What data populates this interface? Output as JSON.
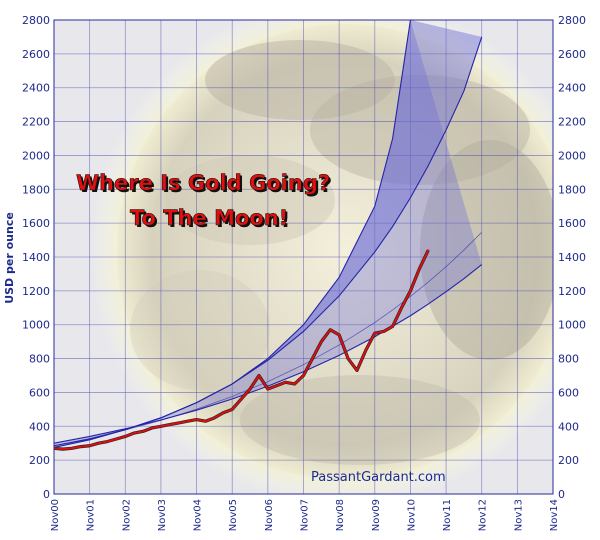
{
  "chart_data": {
    "type": "line",
    "title": "Where Is Gold Going?",
    "subtitle": "To The Moon!",
    "ylabel": "USD per ounce",
    "xlabel": "",
    "credit": "PassantGardant.com",
    "ylim": [
      0,
      2800
    ],
    "yticks": [
      0,
      200,
      400,
      600,
      800,
      1000,
      1200,
      1400,
      1600,
      1800,
      2000,
      2200,
      2400,
      2600,
      2800
    ],
    "xticks": [
      "Nov00",
      "Nov01",
      "Nov02",
      "Nov03",
      "Nov04",
      "Nov05",
      "Nov06",
      "Nov07",
      "Nov08",
      "Nov09",
      "Nov10",
      "Nov11",
      "Nov12",
      "Nov13",
      "Nov14"
    ],
    "grid": true,
    "colors": {
      "price": "#d81010",
      "band": "#2424a8",
      "band_fill": "#6a6ad8",
      "text": "#1e2a8c"
    },
    "series": [
      {
        "x": [
          0,
          0.25,
          0.5,
          0.75,
          1,
          1.25,
          1.5,
          1.75,
          2,
          2.25,
          2.5,
          2.75,
          3,
          3.25,
          3.5,
          3.75,
          4,
          4.25,
          4.5,
          4.75,
          5,
          5.25,
          5.5,
          5.75,
          6,
          6.25,
          6.5,
          6.75,
          7,
          7.25,
          7.5,
          7.75,
          8,
          8.25,
          8.5,
          8.75,
          9,
          9.25,
          9.5,
          9.75,
          10,
          10.25,
          10.5
        ],
        "values": [
          270,
          265,
          270,
          280,
          285,
          300,
          310,
          325,
          340,
          360,
          370,
          390,
          400,
          410,
          420,
          430,
          440,
          430,
          450,
          480,
          500,
          560,
          620,
          700,
          620,
          640,
          660,
          650,
          700,
          800,
          900,
          970,
          940,
          800,
          730,
          850,
          950,
          960,
          990,
          1100,
          1200,
          1330,
          1440
        ]
      },
      {
        "x": [
          0,
          1,
          2,
          3,
          4,
          5,
          6,
          7,
          8,
          9,
          10,
          10.5,
          11,
          11.5,
          12
        ],
        "values": [
          300,
          340,
          385,
          437,
          495,
          561,
          637,
          722,
          819,
          929,
          1053,
          1122,
          1195,
          1272,
          1355
        ]
      },
      {
        "x": [
          0,
          1,
          2,
          3,
          4,
          5,
          6,
          7,
          8,
          9,
          9.5,
          10,
          10.5,
          11,
          11.5,
          12
        ],
        "values": [
          285,
          328,
          378,
          435,
          501,
          576,
          664,
          764,
          880,
          1013,
          1087,
          1167,
          1252,
          1343,
          1441,
          1546
        ]
      },
      {
        "x": [
          0,
          1,
          2,
          3,
          4,
          5,
          6,
          7,
          8,
          9,
          9.5,
          10,
          10.5,
          11,
          11.5,
          12
        ],
        "values": [
          275,
          320,
          380,
          450,
          540,
          650,
          790,
          960,
          1170,
          1430,
          1580,
          1750,
          1940,
          2150,
          2380,
          2700
        ]
      },
      {
        "x": [
          0,
          1,
          2,
          3,
          4,
          5,
          6,
          7,
          8,
          9,
          9.5,
          10
        ],
        "values": [
          285,
          325,
          380,
          450,
          540,
          650,
          800,
          1000,
          1280,
          1700,
          2100,
          2800
        ]
      }
    ]
  }
}
